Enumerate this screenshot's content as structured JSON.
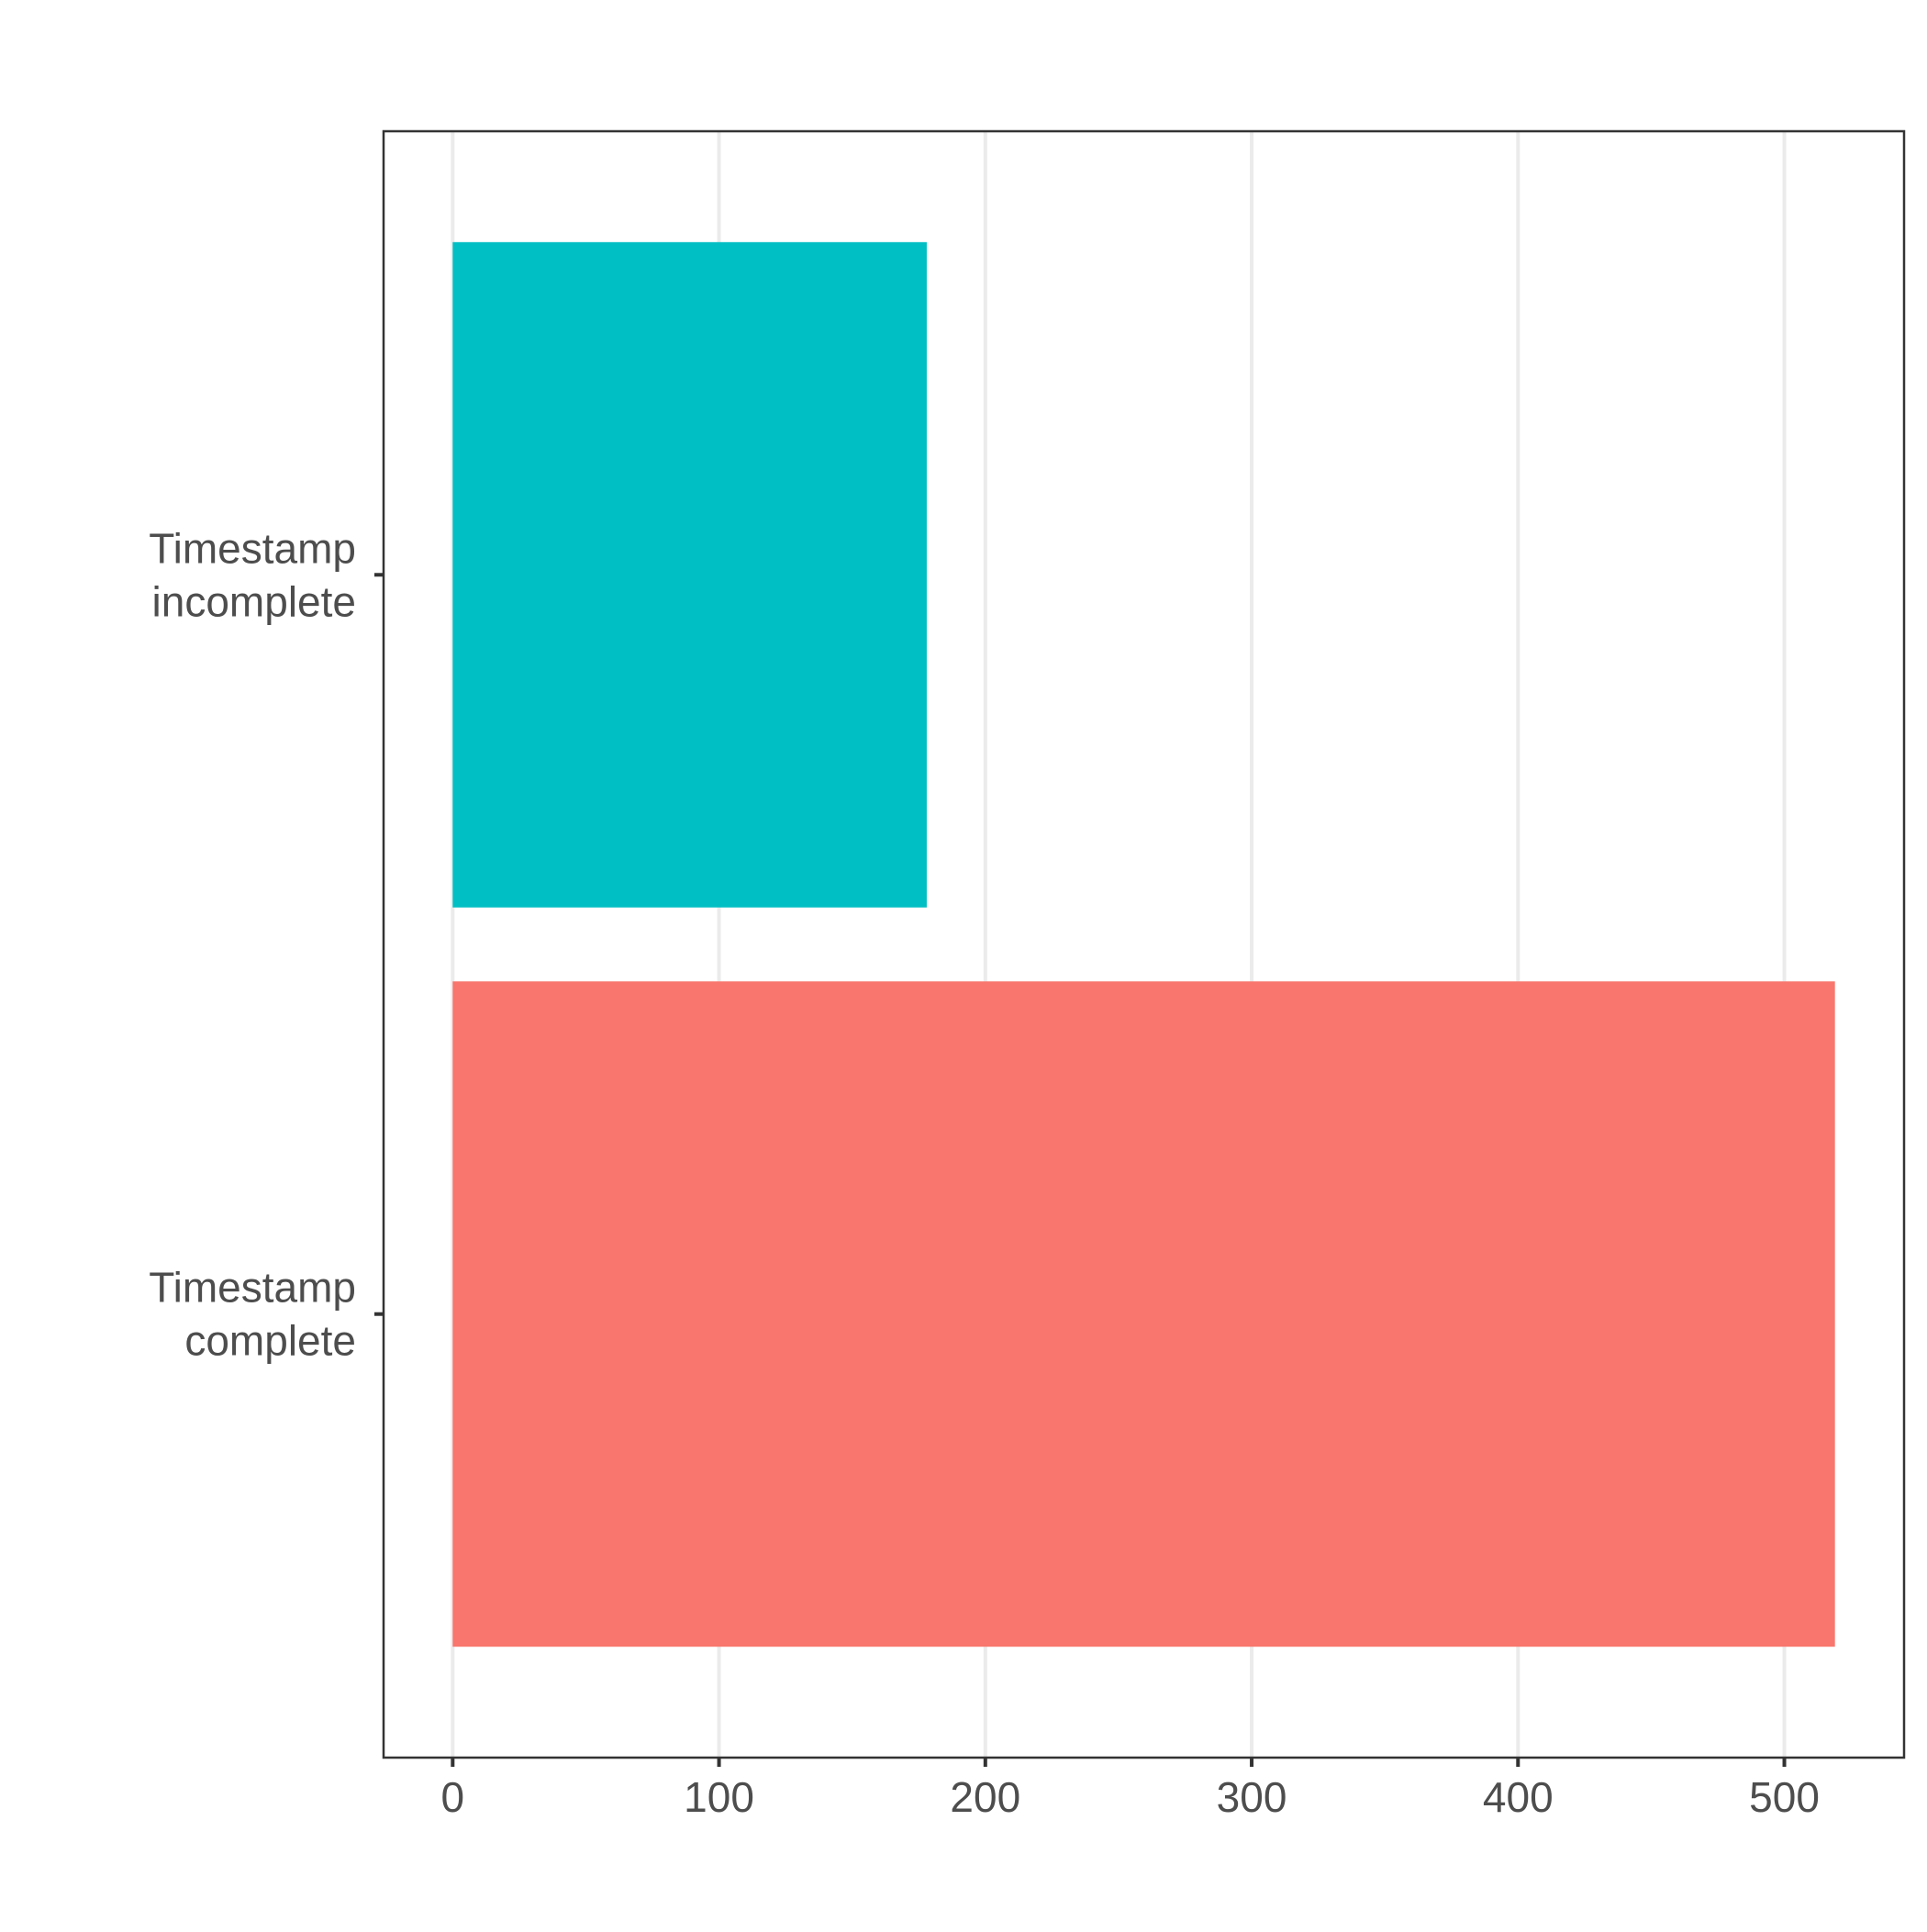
{
  "chart_data": {
    "type": "bar",
    "orientation": "horizontal",
    "categories": [
      "Timestamp complete",
      "Timestamp incomplete"
    ],
    "category_label_lines": [
      [
        "Timestamp",
        "complete"
      ],
      [
        "Timestamp",
        "incomplete"
      ]
    ],
    "values": [
      519,
      178
    ],
    "colors": [
      "#F8766D",
      "#00BFC4"
    ],
    "title": "",
    "xlabel": "",
    "ylabel": "",
    "xlim": [
      -25.95,
      544.95
    ],
    "x_ticks": [
      0,
      100,
      200,
      300,
      400,
      500
    ],
    "grid": "vertical major gridlines",
    "legend": "none"
  }
}
